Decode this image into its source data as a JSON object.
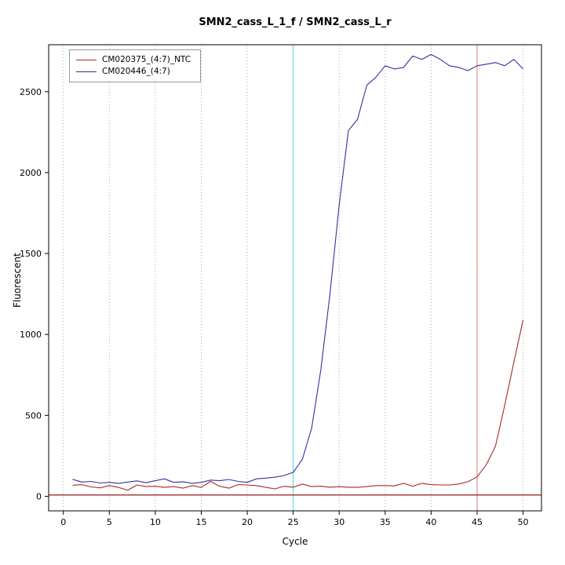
{
  "title": "SMN2_cass_L_1_f / SMN2_cass_L_r",
  "chart_data": {
    "type": "line",
    "title": "SMN2_cass_L_1_f / SMN2_cass_L_r",
    "xlabel": "Cycle",
    "ylabel": "Fluorescent",
    "legend_position": "top-left",
    "grid": "vertical-dotted",
    "grid_color": "#aaaaaa",
    "xlim": [
      -1.6,
      52
    ],
    "ylim": [
      -90,
      2790
    ],
    "xticks": [
      0,
      5,
      10,
      15,
      20,
      25,
      30,
      35,
      40,
      45,
      50
    ],
    "yticks": [
      0,
      500,
      1000,
      1500,
      2000,
      2500
    ],
    "x": [
      1,
      2,
      3,
      4,
      5,
      6,
      7,
      8,
      9,
      10,
      11,
      12,
      13,
      14,
      15,
      16,
      17,
      18,
      19,
      20,
      21,
      22,
      23,
      24,
      25,
      26,
      27,
      28,
      29,
      30,
      31,
      32,
      33,
      34,
      35,
      36,
      37,
      38,
      39,
      40,
      41,
      42,
      43,
      44,
      45,
      46,
      47,
      48,
      49,
      50
    ],
    "series": [
      {
        "name": "CM020375_(4:7)_NTC",
        "color": "#A52A2A",
        "values": [
          68,
          72,
          58,
          52,
          66,
          55,
          38,
          70,
          60,
          62,
          55,
          60,
          50,
          66,
          55,
          92,
          62,
          50,
          72,
          70,
          66,
          56,
          46,
          62,
          56,
          76,
          60,
          62,
          56,
          60,
          56,
          56,
          60,
          66,
          66,
          64,
          80,
          62,
          80,
          72,
          70,
          70,
          76,
          90,
          120,
          195,
          310,
          560,
          830,
          1090
        ]
      },
      {
        "name": "CM020446_(4:7)",
        "color": "#333399",
        "values": [
          105,
          88,
          92,
          82,
          86,
          80,
          88,
          95,
          84,
          96,
          108,
          86,
          90,
          80,
          86,
          100,
          96,
          104,
          92,
          86,
          108,
          112,
          118,
          128,
          148,
          230,
          420,
          780,
          1250,
          1800,
          2260,
          2330,
          2540,
          2590,
          2660,
          2640,
          2650,
          2720,
          2700,
          2730,
          2700,
          2660,
          2650,
          2630,
          2660,
          2670,
          2680,
          2660,
          2700,
          2640
        ]
      }
    ],
    "vlines": [
      {
        "x": 25,
        "color": "#6FD8E2"
      },
      {
        "x": 45,
        "color": "#E88E8E"
      }
    ],
    "hlines": [
      {
        "y": 8,
        "color": "#8B0000"
      }
    ]
  }
}
